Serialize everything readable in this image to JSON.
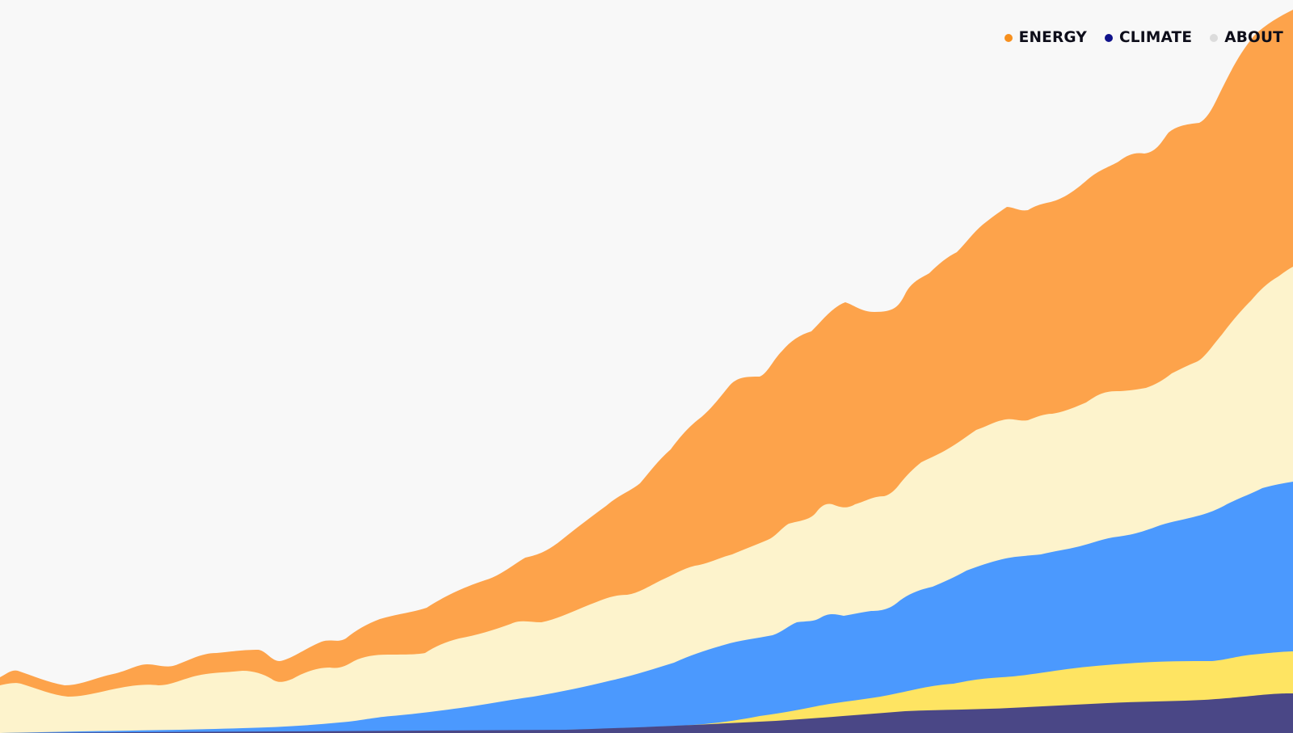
{
  "nav": {
    "items": [
      {
        "label": "ENERGY",
        "dot_color": "#f7901e"
      },
      {
        "label": "CLIMATE",
        "dot_color": "#10128a"
      },
      {
        "label": "ABOUT",
        "dot_color": "#dcdcdc"
      }
    ]
  },
  "background_color": "#f8f8f8",
  "hero_chart": {
    "type": "area",
    "layers": [
      {
        "color": "#fda34b"
      },
      {
        "color": "#fdf3cc"
      },
      {
        "color": "#4b99fe"
      },
      {
        "color": "#fee462"
      },
      {
        "color": "#4a4786"
      }
    ]
  }
}
